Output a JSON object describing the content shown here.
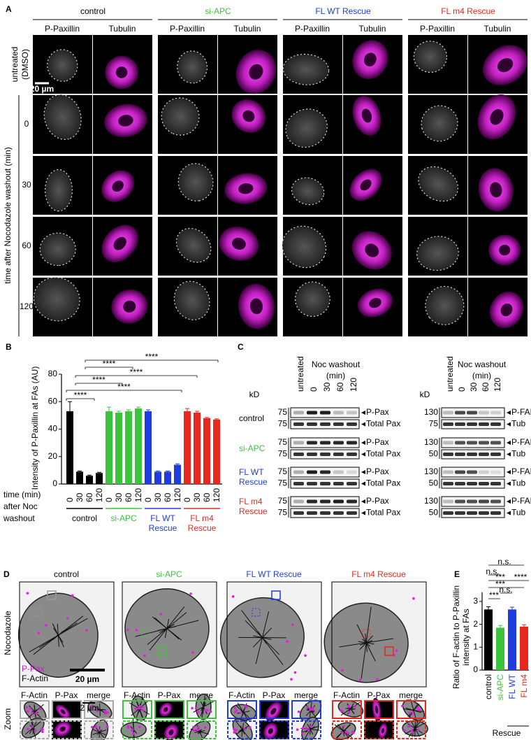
{
  "chart_data": [
    {
      "type": "bar",
      "label": "B",
      "ylabel": "Intensity of P-Paxillin at FAs (AU)",
      "categories": [
        "0",
        "30",
        "60",
        "120"
      ],
      "series": [
        {
          "name": "control",
          "color": "#000000",
          "values": [
            53,
            9,
            6,
            8
          ],
          "errors": [
            7,
            0.5,
            0.5,
            0.5
          ]
        },
        {
          "name": "si-APC",
          "color": "#3cc43c",
          "values": [
            53,
            52,
            53,
            55
          ],
          "errors": [
            3,
            1,
            1,
            1
          ]
        },
        {
          "name": "FL WT Rescue",
          "color": "#1f3ce0",
          "values": [
            53,
            9,
            9,
            14
          ],
          "errors": [
            1,
            0.5,
            0.5,
            0.7
          ]
        },
        {
          "name": "FL m4 Rescue",
          "color": "#e8281e",
          "values": [
            53,
            52,
            48,
            47
          ],
          "errors": [
            2,
            1,
            0.5,
            0.5
          ]
        }
      ],
      "ylim": [
        0,
        80
      ],
      "yticks": [
        0,
        20,
        40,
        60,
        80
      ],
      "xlabel": [
        "time (min)",
        "after Noc",
        "washout"
      ],
      "significance": [
        "****",
        "****",
        "****",
        "****",
        "****",
        "****"
      ]
    },
    {
      "type": "bar",
      "label": "E",
      "ylabel": "Ratio of F-actin to P-Paxillin intensity at FAs",
      "categories": [
        "control",
        "si-APC",
        "FL WT",
        "FL m4"
      ],
      "colors": [
        "#000000",
        "#3cc43c",
        "#1f3ce0",
        "#e8281e"
      ],
      "values": [
        2.65,
        1.85,
        2.65,
        1.9
      ],
      "errors": [
        0.12,
        0.1,
        0.1,
        0.08
      ],
      "ylim": [
        0,
        3.4
      ],
      "yticks": [
        0,
        1,
        2,
        3
      ],
      "group_label": "Rescue",
      "significance": [
        "n.s.",
        "n.s.",
        "***",
        "****",
        "***",
        "n.s.",
        "***"
      ]
    }
  ],
  "panel_A": {
    "label": "A",
    "channels": [
      "P-Paxillin",
      "Tubulin"
    ],
    "row_header": [
      "untreated",
      "(DMSO)"
    ],
    "times": [
      "0",
      "30",
      "60",
      "120"
    ],
    "axis_label": "time after Nocodazole washout (min)",
    "scale_bar": "20 µm"
  },
  "panel_C": {
    "label": "C",
    "kd": "kD",
    "lanes": [
      "untreated",
      "0",
      "30",
      "60",
      "120"
    ],
    "washout": "Noc washout",
    "unit": "(min)",
    "left": {
      "bands": [
        "P-Pax",
        "Total Pax"
      ],
      "markers": [
        [
          "75",
          "75"
        ],
        [
          "75",
          "75"
        ],
        [
          "75",
          "75"
        ],
        [
          "75",
          "75"
        ]
      ]
    },
    "right": {
      "bands": [
        "P-FAK",
        "Tub"
      ],
      "markers": [
        [
          "130",
          "75"
        ],
        [
          "130",
          "50"
        ],
        [
          "130",
          "50"
        ],
        [
          "130",
          "50"
        ]
      ]
    }
  },
  "panel_D": {
    "label": "D",
    "row_label": "Nocodazole",
    "zoom": "Zoom",
    "legend": [
      "P-Pax",
      "F-Actin"
    ],
    "scale_bar": "20 µm",
    "zoom_scale": "2 µm",
    "zoom_channels": [
      "F-Actin",
      "P-Pax",
      "merge"
    ]
  }
}
